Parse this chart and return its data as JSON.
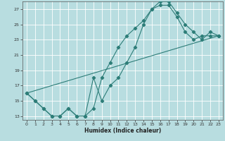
{
  "xlabel": "Humidex (Indice chaleur)",
  "bg_color": "#b8dde0",
  "line_color": "#2d7d78",
  "grid_color": "#ffffff",
  "xlim": [
    -0.5,
    23.5
  ],
  "ylim": [
    12.5,
    28.0
  ],
  "xticks": [
    0,
    1,
    2,
    3,
    4,
    5,
    6,
    7,
    8,
    9,
    10,
    11,
    12,
    13,
    14,
    15,
    16,
    17,
    18,
    19,
    20,
    21,
    22,
    23
  ],
  "yticks": [
    13,
    15,
    17,
    19,
    21,
    23,
    25,
    27
  ],
  "curve1_x": [
    0,
    1,
    2,
    3,
    4,
    5,
    6,
    7,
    8,
    9,
    10,
    11,
    12,
    13,
    14,
    15,
    16,
    17,
    18,
    19,
    20,
    21,
    22,
    23
  ],
  "curve1_y": [
    16,
    15,
    14,
    13,
    13,
    14,
    13,
    13,
    18,
    15,
    17,
    18,
    20,
    22,
    25,
    27,
    27.5,
    27.5,
    26,
    24,
    23,
    23.5,
    23.5,
    23.5
  ],
  "curve2_x": [
    0,
    1,
    2,
    3,
    4,
    5,
    6,
    7,
    8,
    9,
    10,
    11,
    12,
    13,
    14,
    15,
    16,
    17,
    18,
    19,
    20,
    21,
    22,
    23
  ],
  "curve2_y": [
    16,
    15,
    14,
    13,
    13,
    14,
    13,
    13,
    14,
    18,
    20,
    22,
    23.5,
    24.5,
    25.5,
    27,
    28,
    28,
    26.5,
    25,
    24,
    23,
    24,
    23.5
  ],
  "curve3_x": [
    0,
    23
  ],
  "curve3_y": [
    16,
    23.5
  ]
}
